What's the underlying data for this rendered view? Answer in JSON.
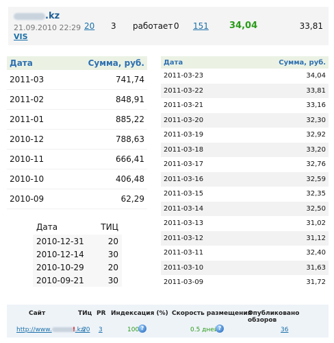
{
  "site_row": {
    "domain_suffix": ".kz",
    "date": "21.09.2010 22:29",
    "vis_link": "VIS",
    "tic": "20",
    "pr": "3",
    "status": "работает",
    "zero": "0",
    "count_link": "151",
    "price": "34,04",
    "last_value": "33,81"
  },
  "month_table": {
    "headers": [
      "Дата",
      "Сумма, руб."
    ],
    "rows": [
      [
        "2011-03",
        "741,74"
      ],
      [
        "2011-02",
        "848,91"
      ],
      [
        "2011-01",
        "885,22"
      ],
      [
        "2010-12",
        "788,63"
      ],
      [
        "2010-11",
        "666,41"
      ],
      [
        "2010-10",
        "406,48"
      ],
      [
        "2010-09",
        "62,29"
      ]
    ]
  },
  "tic_table": {
    "headers": [
      "Дата",
      "ТИЦ"
    ],
    "rows": [
      [
        "2010-12-31",
        "20"
      ],
      [
        "2010-12-14",
        "30"
      ],
      [
        "2010-10-29",
        "20"
      ],
      [
        "2010-09-21",
        "30"
      ]
    ]
  },
  "day_table": {
    "headers": [
      "Дата",
      "Сумма, руб."
    ],
    "rows": [
      [
        "2011-03-23",
        "34,04"
      ],
      [
        "2011-03-22",
        "33,81"
      ],
      [
        "2011-03-21",
        "33,16"
      ],
      [
        "2011-03-20",
        "32,30"
      ],
      [
        "2011-03-19",
        "32,92"
      ],
      [
        "2011-03-18",
        "33,20"
      ],
      [
        "2011-03-17",
        "32,76"
      ],
      [
        "2011-03-16",
        "32,59"
      ],
      [
        "2011-03-15",
        "32,35"
      ],
      [
        "2011-03-14",
        "32,50"
      ],
      [
        "2011-03-13",
        "31,02"
      ],
      [
        "2011-03-12",
        "31,12"
      ],
      [
        "2011-03-11",
        "32,40"
      ],
      [
        "2011-03-10",
        "31,63"
      ],
      [
        "2011-03-09",
        "31,72"
      ]
    ]
  },
  "bottom_table": {
    "headers": {
      "site": "Сайт",
      "tic": "ТИц",
      "pr": "PR",
      "index": "Индексация (%)",
      "speed": "Скорость размещения",
      "published": "Опубликовано обзоров"
    },
    "row": {
      "url_prefix": "http://www.",
      "url_suffix": ".kz/",
      "excl": "!",
      "tic": "20",
      "pr": "3",
      "index": "100",
      "speed": "0.5 дней.",
      "published": "36"
    }
  },
  "colors": {
    "header_bg": "#ebf2e4",
    "header_text": "#2d6fb0",
    "link": "#1a6fa8",
    "price_green": "#2a9a1a"
  }
}
